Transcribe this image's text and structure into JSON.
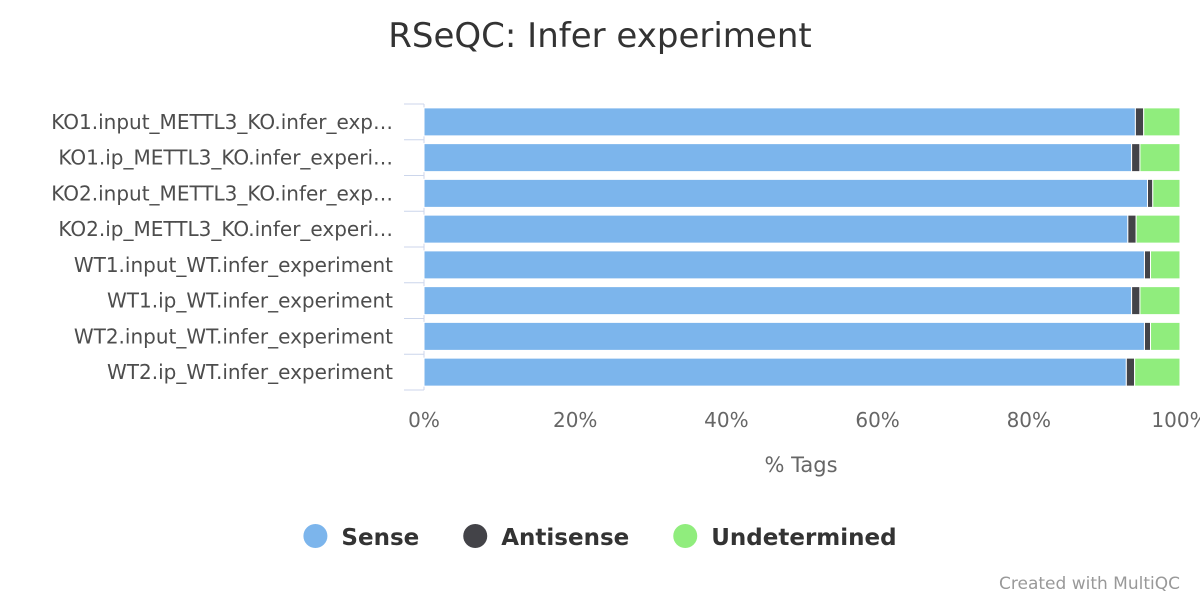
{
  "chart_data": {
    "type": "bar",
    "orientation": "horizontal",
    "stacked": "percent",
    "title": "RSeQC: Infer experiment",
    "xlabel": "% Tags",
    "ylabel": "",
    "xlim": [
      0,
      100
    ],
    "x_ticks": [
      "0%",
      "20%",
      "40%",
      "60%",
      "80%",
      "100%"
    ],
    "categories": [
      "KO1.input_METTL3_KO.infer_exp…",
      "KO1.ip_METTL3_KO.infer_experi…",
      "KO2.input_METTL3_KO.infer_exp…",
      "KO2.ip_METTL3_KO.infer_experi…",
      "WT1.input_WT.infer_experiment",
      "WT1.ip_WT.infer_experiment",
      "WT2.input_WT.infer_experiment",
      "WT2.ip_WT.infer_experiment"
    ],
    "series": [
      {
        "name": "Sense",
        "color": "#7cb5ec",
        "values": [
          94.1,
          93.6,
          95.7,
          93.1,
          95.3,
          93.6,
          95.3,
          92.9
        ]
      },
      {
        "name": "Antisense",
        "color": "#434348",
        "values": [
          1.1,
          1.1,
          0.7,
          1.1,
          0.8,
          1.1,
          0.8,
          1.1
        ]
      },
      {
        "name": "Undetermined",
        "color": "#90ed7d",
        "values": [
          4.8,
          5.3,
          3.6,
          5.8,
          3.9,
          5.3,
          3.9,
          6.0
        ]
      }
    ],
    "legend": {
      "position": "bottom-center"
    },
    "grid": false
  },
  "credit": "Created with MultiQC"
}
